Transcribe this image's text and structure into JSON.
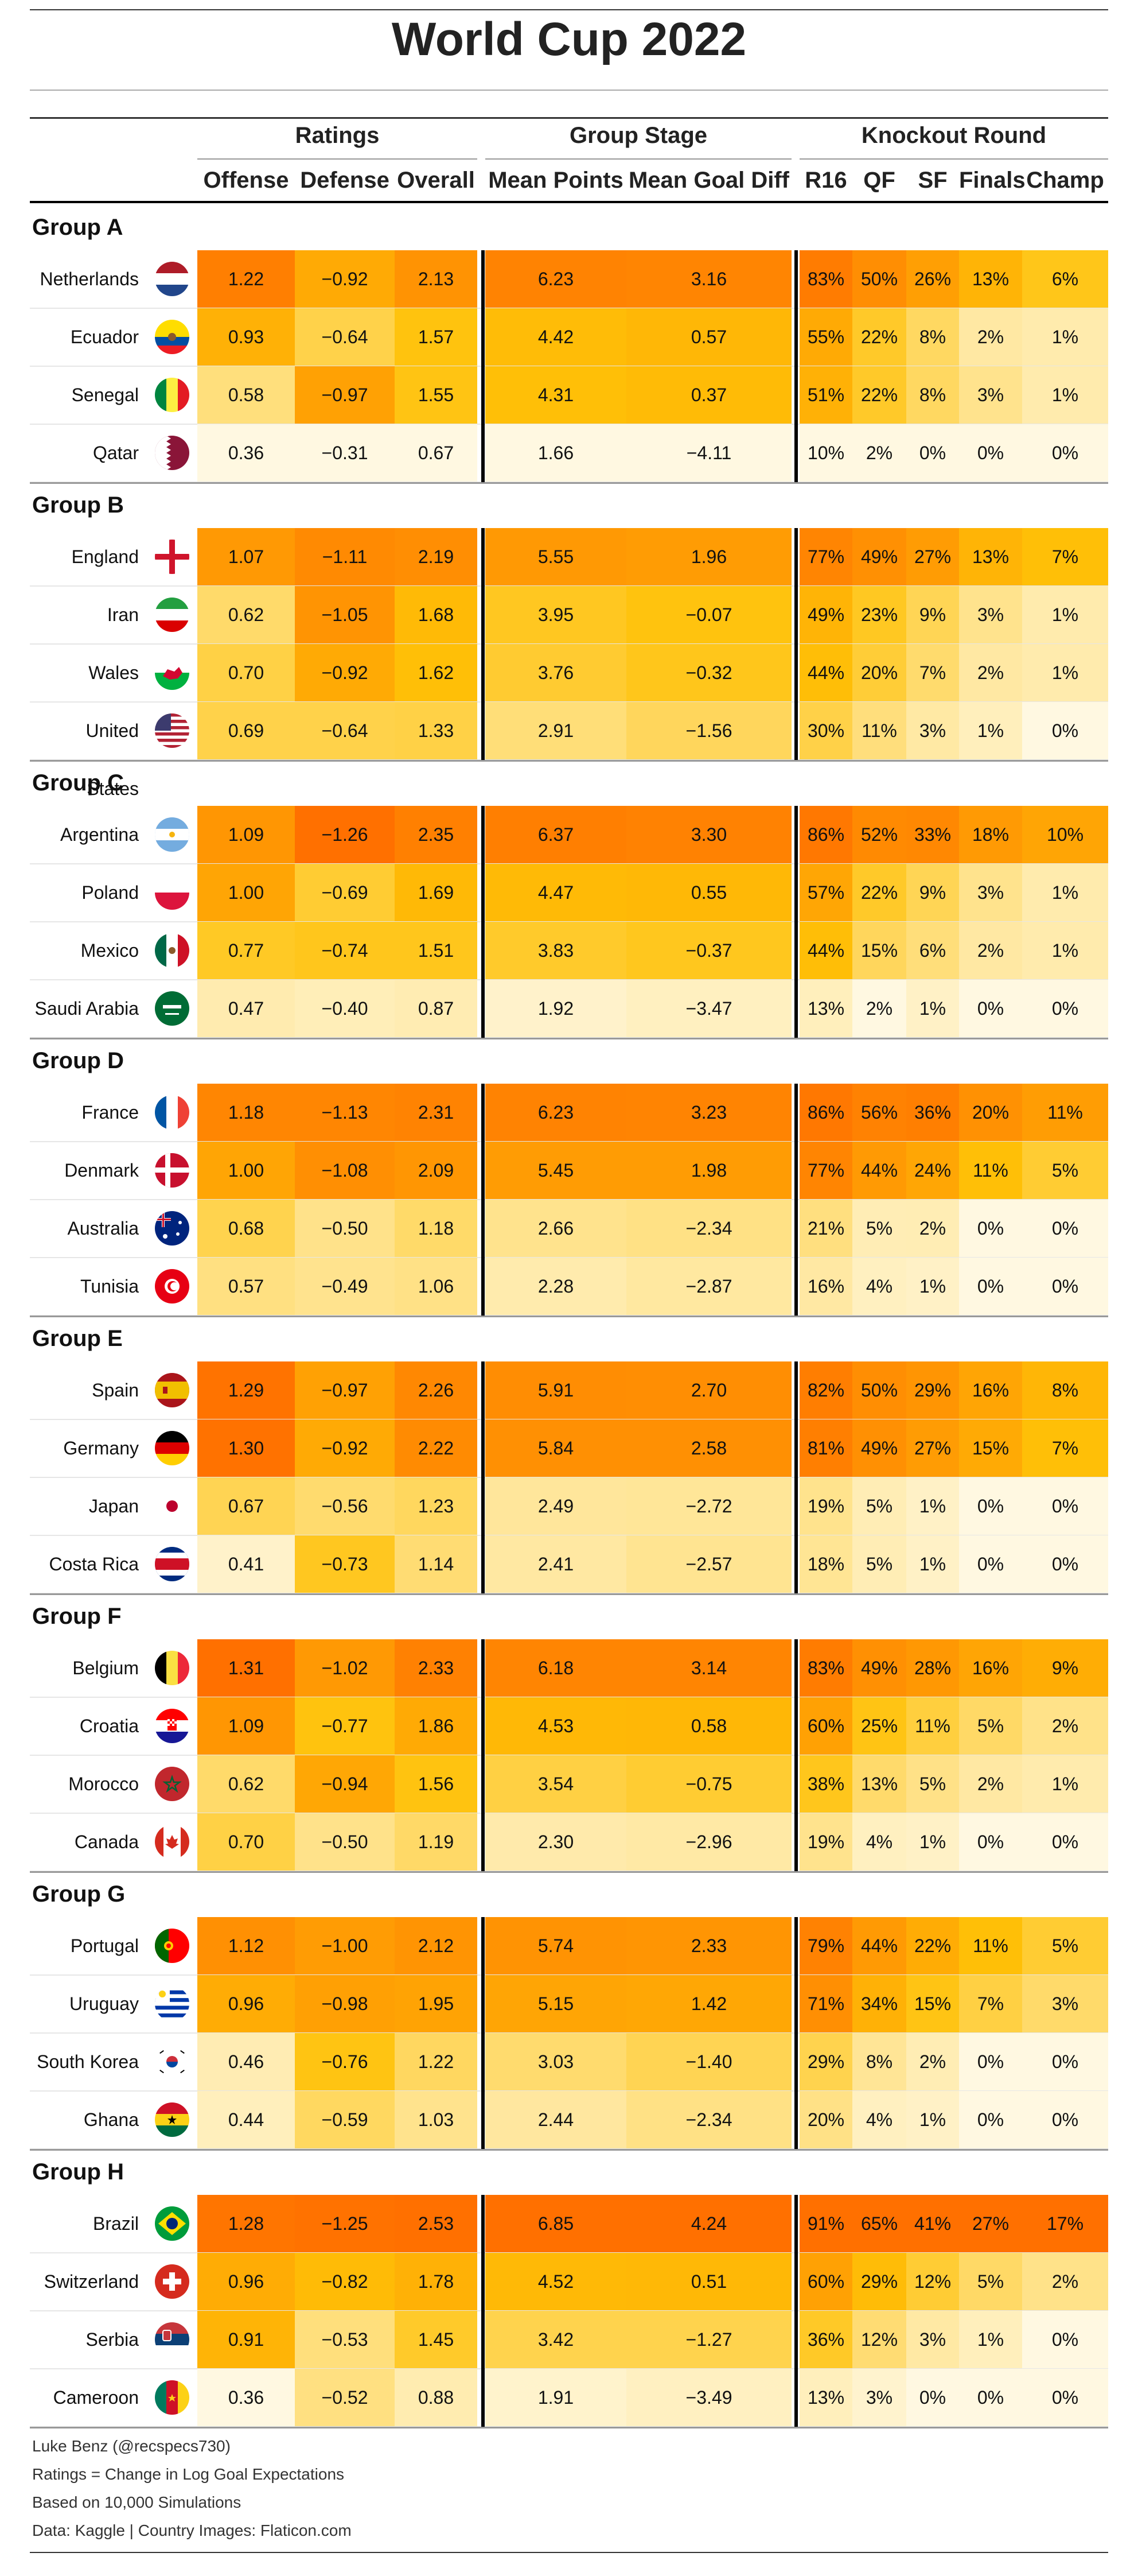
{
  "title": "World Cup 2022",
  "headers": {
    "groups": [
      "Ratings",
      "Group Stage",
      "Knockout Round"
    ],
    "columns": [
      "Offense",
      "Defense",
      "Overall",
      "Mean Points",
      "Mean Goal Diff",
      "R16",
      "QF",
      "SF",
      "Finals",
      "Champ"
    ]
  },
  "colors": {
    "low": "#fff8e1",
    "mid": "#ffc107",
    "high": "#ff7000"
  },
  "chart_data": {
    "type": "table",
    "groups": [
      {
        "name": "Group A",
        "teams": [
          {
            "team": "Netherlands",
            "flag": "netherlands-flag-icon",
            "values": [
              "1.22",
              "−0.92",
              "2.13",
              "6.23",
              "3.16",
              "83%",
              "50%",
              "26%",
              "13%",
              "6%"
            ]
          },
          {
            "team": "Ecuador",
            "flag": "ecuador-flag-icon",
            "values": [
              "0.93",
              "−0.64",
              "1.57",
              "4.42",
              "0.57",
              "55%",
              "22%",
              "8%",
              "2%",
              "1%"
            ]
          },
          {
            "team": "Senegal",
            "flag": "senegal-flag-icon",
            "values": [
              "0.58",
              "−0.97",
              "1.55",
              "4.31",
              "0.37",
              "51%",
              "22%",
              "8%",
              "3%",
              "1%"
            ]
          },
          {
            "team": "Qatar",
            "flag": "qatar-flag-icon",
            "values": [
              "0.36",
              "−0.31",
              "0.67",
              "1.66",
              "−4.11",
              "10%",
              "2%",
              "0%",
              "0%",
              "0%"
            ]
          }
        ]
      },
      {
        "name": "Group B",
        "teams": [
          {
            "team": "England",
            "flag": "england-flag-icon",
            "values": [
              "1.07",
              "−1.11",
              "2.19",
              "5.55",
              "1.96",
              "77%",
              "49%",
              "27%",
              "13%",
              "7%"
            ]
          },
          {
            "team": "Iran",
            "flag": "iran-flag-icon",
            "values": [
              "0.62",
              "−1.05",
              "1.68",
              "3.95",
              "−0.07",
              "49%",
              "23%",
              "9%",
              "3%",
              "1%"
            ]
          },
          {
            "team": "Wales",
            "flag": "wales-flag-icon",
            "values": [
              "0.70",
              "−0.92",
              "1.62",
              "3.76",
              "−0.32",
              "44%",
              "20%",
              "7%",
              "2%",
              "1%"
            ]
          },
          {
            "team": "United States",
            "flag": "usa-flag-icon",
            "values": [
              "0.69",
              "−0.64",
              "1.33",
              "2.91",
              "−1.56",
              "30%",
              "11%",
              "3%",
              "1%",
              "0%"
            ]
          }
        ]
      },
      {
        "name": "Group C",
        "teams": [
          {
            "team": "Argentina",
            "flag": "argentina-flag-icon",
            "values": [
              "1.09",
              "−1.26",
              "2.35",
              "6.37",
              "3.30",
              "86%",
              "52%",
              "33%",
              "18%",
              "10%"
            ]
          },
          {
            "team": "Poland",
            "flag": "poland-flag-icon",
            "values": [
              "1.00",
              "−0.69",
              "1.69",
              "4.47",
              "0.55",
              "57%",
              "22%",
              "9%",
              "3%",
              "1%"
            ]
          },
          {
            "team": "Mexico",
            "flag": "mexico-flag-icon",
            "values": [
              "0.77",
              "−0.74",
              "1.51",
              "3.83",
              "−0.37",
              "44%",
              "15%",
              "6%",
              "2%",
              "1%"
            ]
          },
          {
            "team": "Saudi Arabia",
            "flag": "saudi-arabia-flag-icon",
            "values": [
              "0.47",
              "−0.40",
              "0.87",
              "1.92",
              "−3.47",
              "13%",
              "2%",
              "1%",
              "0%",
              "0%"
            ]
          }
        ]
      },
      {
        "name": "Group D",
        "teams": [
          {
            "team": "France",
            "flag": "france-flag-icon",
            "values": [
              "1.18",
              "−1.13",
              "2.31",
              "6.23",
              "3.23",
              "86%",
              "56%",
              "36%",
              "20%",
              "11%"
            ]
          },
          {
            "team": "Denmark",
            "flag": "denmark-flag-icon",
            "values": [
              "1.00",
              "−1.08",
              "2.09",
              "5.45",
              "1.98",
              "77%",
              "44%",
              "24%",
              "11%",
              "5%"
            ]
          },
          {
            "team": "Australia",
            "flag": "australia-flag-icon",
            "values": [
              "0.68",
              "−0.50",
              "1.18",
              "2.66",
              "−2.34",
              "21%",
              "5%",
              "2%",
              "0%",
              "0%"
            ]
          },
          {
            "team": "Tunisia",
            "flag": "tunisia-flag-icon",
            "values": [
              "0.57",
              "−0.49",
              "1.06",
              "2.28",
              "−2.87",
              "16%",
              "4%",
              "1%",
              "0%",
              "0%"
            ]
          }
        ]
      },
      {
        "name": "Group E",
        "teams": [
          {
            "team": "Spain",
            "flag": "spain-flag-icon",
            "values": [
              "1.29",
              "−0.97",
              "2.26",
              "5.91",
              "2.70",
              "82%",
              "50%",
              "29%",
              "16%",
              "8%"
            ]
          },
          {
            "team": "Germany",
            "flag": "germany-flag-icon",
            "values": [
              "1.30",
              "−0.92",
              "2.22",
              "5.84",
              "2.58",
              "81%",
              "49%",
              "27%",
              "15%",
              "7%"
            ]
          },
          {
            "team": "Japan",
            "flag": "japan-flag-icon",
            "values": [
              "0.67",
              "−0.56",
              "1.23",
              "2.49",
              "−2.72",
              "19%",
              "5%",
              "1%",
              "0%",
              "0%"
            ]
          },
          {
            "team": "Costa Rica",
            "flag": "costa-rica-flag-icon",
            "values": [
              "0.41",
              "−0.73",
              "1.14",
              "2.41",
              "−2.57",
              "18%",
              "5%",
              "1%",
              "0%",
              "0%"
            ]
          }
        ]
      },
      {
        "name": "Group F",
        "teams": [
          {
            "team": "Belgium",
            "flag": "belgium-flag-icon",
            "values": [
              "1.31",
              "−1.02",
              "2.33",
              "6.18",
              "3.14",
              "83%",
              "49%",
              "28%",
              "16%",
              "9%"
            ]
          },
          {
            "team": "Croatia",
            "flag": "croatia-flag-icon",
            "values": [
              "1.09",
              "−0.77",
              "1.86",
              "4.53",
              "0.58",
              "60%",
              "25%",
              "11%",
              "5%",
              "2%"
            ]
          },
          {
            "team": "Morocco",
            "flag": "morocco-flag-icon",
            "values": [
              "0.62",
              "−0.94",
              "1.56",
              "3.54",
              "−0.75",
              "38%",
              "13%",
              "5%",
              "2%",
              "1%"
            ]
          },
          {
            "team": "Canada",
            "flag": "canada-flag-icon",
            "values": [
              "0.70",
              "−0.50",
              "1.19",
              "2.30",
              "−2.96",
              "19%",
              "4%",
              "1%",
              "0%",
              "0%"
            ]
          }
        ]
      },
      {
        "name": "Group G",
        "teams": [
          {
            "team": "Portugal",
            "flag": "portugal-flag-icon",
            "values": [
              "1.12",
              "−1.00",
              "2.12",
              "5.74",
              "2.33",
              "79%",
              "44%",
              "22%",
              "11%",
              "5%"
            ]
          },
          {
            "team": "Uruguay",
            "flag": "uruguay-flag-icon",
            "values": [
              "0.96",
              "−0.98",
              "1.95",
              "5.15",
              "1.42",
              "71%",
              "34%",
              "15%",
              "7%",
              "3%"
            ]
          },
          {
            "team": "South Korea",
            "flag": "south-korea-flag-icon",
            "values": [
              "0.46",
              "−0.76",
              "1.22",
              "3.03",
              "−1.40",
              "29%",
              "8%",
              "2%",
              "0%",
              "0%"
            ]
          },
          {
            "team": "Ghana",
            "flag": "ghana-flag-icon",
            "values": [
              "0.44",
              "−0.59",
              "1.03",
              "2.44",
              "−2.34",
              "20%",
              "4%",
              "1%",
              "0%",
              "0%"
            ]
          }
        ]
      },
      {
        "name": "Group H",
        "teams": [
          {
            "team": "Brazil",
            "flag": "brazil-flag-icon",
            "values": [
              "1.28",
              "−1.25",
              "2.53",
              "6.85",
              "4.24",
              "91%",
              "65%",
              "41%",
              "27%",
              "17%"
            ]
          },
          {
            "team": "Switzerland",
            "flag": "switzerland-flag-icon",
            "values": [
              "0.96",
              "−0.82",
              "1.78",
              "4.52",
              "0.51",
              "60%",
              "29%",
              "12%",
              "5%",
              "2%"
            ]
          },
          {
            "team": "Serbia",
            "flag": "serbia-flag-icon",
            "values": [
              "0.91",
              "−0.53",
              "1.45",
              "3.42",
              "−1.27",
              "36%",
              "12%",
              "3%",
              "1%",
              "0%"
            ]
          },
          {
            "team": "Cameroon",
            "flag": "cameroon-flag-icon",
            "values": [
              "0.36",
              "−0.52",
              "0.88",
              "1.91",
              "−3.49",
              "13%",
              "3%",
              "0%",
              "0%",
              "0%"
            ]
          }
        ]
      }
    ]
  },
  "footer": [
    "Luke Benz (@recspecs730)",
    "Ratings = Change in Log Goal Expectations",
    "Based on 10,000 Simulations",
    "Data: Kaggle | Country Images: Flaticon.com"
  ]
}
